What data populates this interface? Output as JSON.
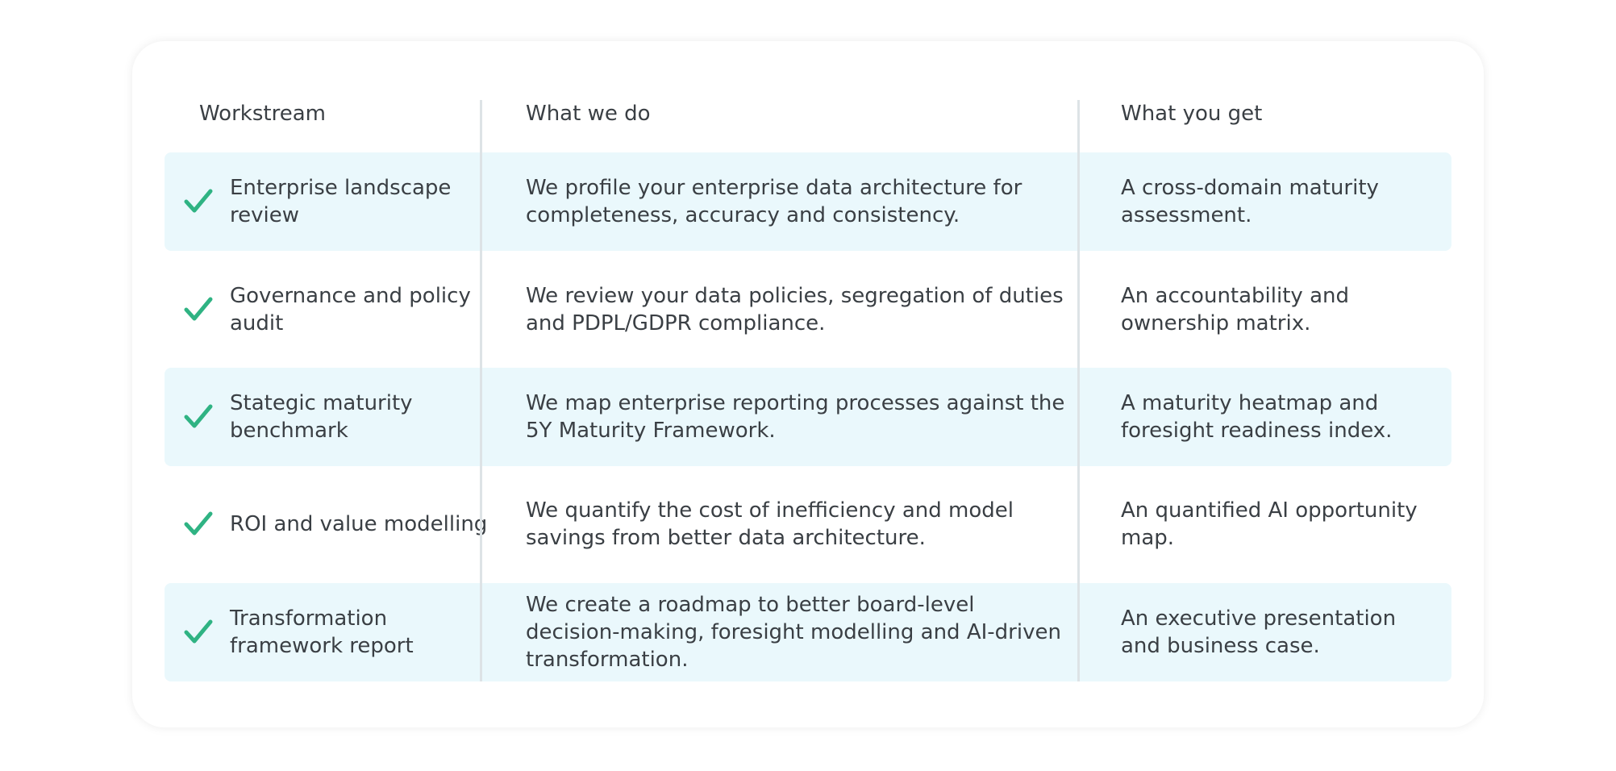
{
  "table": {
    "header": [
      "Workstream",
      "What we do",
      "What you get"
    ],
    "rows": [
      [
        "Enterprise landscape review",
        "We profile your enterprise data architecture for completeness, accuracy and consistency.",
        "A cross-domain maturity assessment."
      ],
      [
        "Governance and policy audit",
        "We review your data policies, segregation of duties and PDPL/GDPR compliance.",
        "An accountability and ownership matrix."
      ],
      [
        "Stategic maturity benchmark",
        "We map enterprise reporting processes against the 5Y Maturity Framework.",
        "A maturity heatmap and foresight readiness index."
      ],
      [
        "ROI and value modelling",
        "We quantify the cost of inefficiency and model savings from better data architecture.",
        "An quantified AI opportunity map."
      ],
      [
        "Transformation framework report",
        "We create a roadmap to better board-level decision-making, foresight modelling and AI-driven transformation.",
        "An executive presentation and business case."
      ]
    ]
  }
}
